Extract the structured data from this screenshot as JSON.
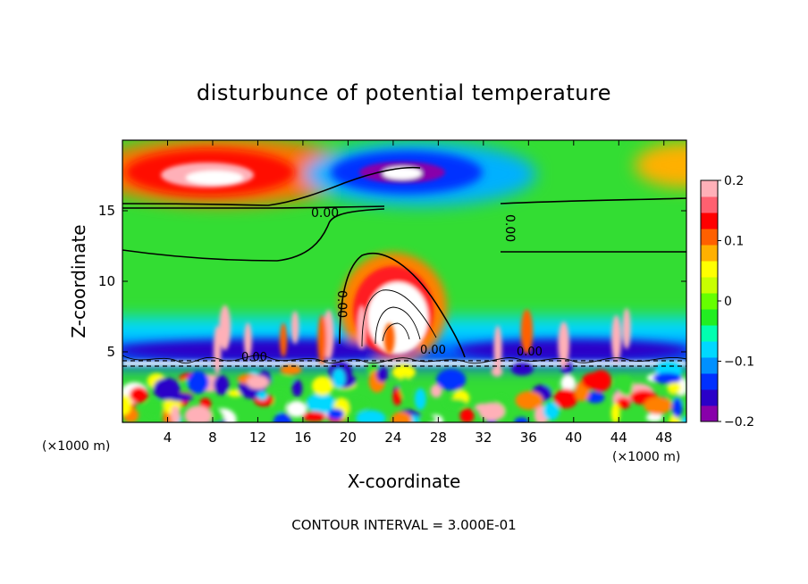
{
  "chart_data": {
    "type": "heatmap",
    "title": "disturbunce of potential temperature",
    "xlabel": "X-coordinate",
    "ylabel": "Z-coordinate",
    "x_unit_left": "(×1000 m)",
    "x_unit_right": "(×1000 m)",
    "xlim": [
      0,
      50
    ],
    "ylim": [
      0,
      20
    ],
    "x_ticks": [
      4,
      8,
      12,
      16,
      20,
      24,
      28,
      32,
      36,
      40,
      44,
      48
    ],
    "y_ticks": [
      5,
      10,
      15
    ],
    "footer": "CONTOUR INTERVAL = 3.000E-01",
    "contour_label": "0.00",
    "colorbar": {
      "range": [
        -0.2,
        0.2
      ],
      "tick_values": [
        0.2,
        0.1,
        0,
        -0.1,
        -0.2
      ],
      "tick_labels": [
        "0.2",
        "0.1",
        "0",
        "−0.1",
        "−0.2"
      ],
      "colors": [
        "#8800aa",
        "#2a00c8",
        "#0030ff",
        "#0090ff",
        "#00d8ff",
        "#00ffb0",
        "#22ee22",
        "#66ff00",
        "#c8ff00",
        "#ffff00",
        "#ffb000",
        "#ff6000",
        "#ff0000",
        "#ff6070",
        "#ffb0b8"
      ]
    },
    "features": [
      {
        "name": "warm-anomaly",
        "x": 9,
        "z": 17.4,
        "value": 0.2
      },
      {
        "name": "cold-anomaly",
        "x": 24,
        "z": 17.6,
        "value": -0.2
      },
      {
        "name": "warm-plume",
        "x": 22,
        "z": 7.5,
        "value": 0.2
      }
    ]
  }
}
